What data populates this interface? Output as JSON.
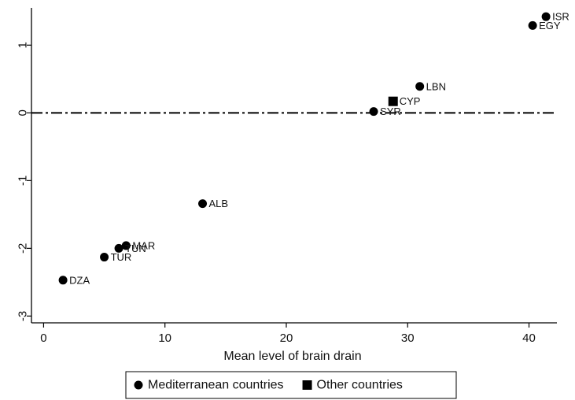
{
  "chart_data": {
    "type": "scatter",
    "title": "",
    "xlabel": "Mean level of brain drain",
    "ylabel": "",
    "xlim": [
      -1,
      42.3
    ],
    "ylim": [
      -3.1,
      1.55
    ],
    "xticks": [
      0,
      10,
      20,
      30,
      40
    ],
    "yticks": [
      1,
      0,
      -1,
      -2,
      -3
    ],
    "xtick_labels": [
      "0",
      "10",
      "20",
      "30",
      "40"
    ],
    "ytick_labels": [
      "1",
      "0",
      "-1",
      "-2",
      "-3"
    ],
    "grid": false,
    "reference_line": {
      "y": 0,
      "style": "dash-dot"
    },
    "series": [
      {
        "name": "Mediterranean countries",
        "marker": "circle",
        "color": "#000000",
        "points": [
          {
            "label": "ISR",
            "x": 41.4,
            "y": 1.42
          },
          {
            "label": "EGY",
            "x": 40.3,
            "y": 1.29
          },
          {
            "label": "LBN",
            "x": 31.0,
            "y": 0.39
          },
          {
            "label": "SYR",
            "x": 27.2,
            "y": 0.02
          },
          {
            "label": "ALB",
            "x": 13.1,
            "y": -1.34
          },
          {
            "label": "MAR",
            "x": 6.8,
            "y": -1.96
          },
          {
            "label": "TUN",
            "x": 6.2,
            "y": -2.0
          },
          {
            "label": "TUR",
            "x": 5.0,
            "y": -2.13
          },
          {
            "label": "DZA",
            "x": 1.6,
            "y": -2.47
          }
        ]
      },
      {
        "name": "Other countries",
        "marker": "square",
        "color": "#000000",
        "points": [
          {
            "label": "CYP",
            "x": 28.8,
            "y": 0.17
          }
        ]
      }
    ],
    "legend": {
      "position": "bottom-center",
      "entries": [
        "Mediterranean countries",
        "Other countries"
      ]
    }
  }
}
